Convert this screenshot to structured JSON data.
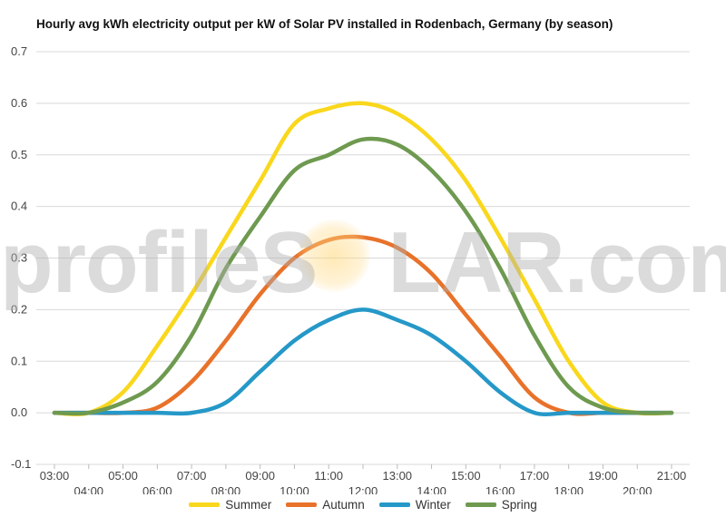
{
  "chart_data": {
    "type": "line",
    "title": "Hourly avg kWh electricity output per kW of Solar PV installed in Rodenbach, Germany (by season)",
    "xlabel": "",
    "ylabel": "",
    "x": [
      "03:00",
      "04:00",
      "05:00",
      "06:00",
      "07:00",
      "08:00",
      "09:00",
      "10:00",
      "11:00",
      "12:00",
      "13:00",
      "14:00",
      "15:00",
      "16:00",
      "17:00",
      "18:00",
      "19:00",
      "20:00",
      "21:00"
    ],
    "ylim": [
      -0.1,
      0.7
    ],
    "y_ticks": [
      "-0.1",
      "0.0",
      "0.1",
      "0.2",
      "0.3",
      "0.4",
      "0.5",
      "0.6",
      "0.7"
    ],
    "grid": true,
    "legend_position": "bottom",
    "series": [
      {
        "name": "Summer",
        "color": "#f9d71c",
        "values": [
          0.0,
          0.0,
          0.04,
          0.13,
          0.23,
          0.34,
          0.45,
          0.56,
          0.59,
          0.6,
          0.58,
          0.53,
          0.45,
          0.34,
          0.22,
          0.1,
          0.02,
          0.0,
          0.0
        ]
      },
      {
        "name": "Autumn",
        "color": "#e8722a",
        "values": [
          0.0,
          0.0,
          0.0,
          0.01,
          0.06,
          0.14,
          0.23,
          0.3,
          0.335,
          0.34,
          0.32,
          0.27,
          0.19,
          0.11,
          0.03,
          0.0,
          0.0,
          0.0,
          0.0
        ]
      },
      {
        "name": "Winter",
        "color": "#2598c8",
        "values": [
          0.0,
          0.0,
          0.0,
          0.0,
          0.0,
          0.02,
          0.08,
          0.14,
          0.18,
          0.2,
          0.18,
          0.15,
          0.1,
          0.04,
          0.0,
          0.0,
          0.0,
          0.0,
          0.0
        ]
      },
      {
        "name": "Spring",
        "color": "#6e9a50",
        "values": [
          0.0,
          0.0,
          0.02,
          0.06,
          0.15,
          0.28,
          0.38,
          0.47,
          0.5,
          0.53,
          0.52,
          0.47,
          0.39,
          0.28,
          0.15,
          0.05,
          0.01,
          0.0,
          0.0
        ]
      }
    ]
  },
  "watermark": {
    "text_left": "profileS",
    "text_right": "LAR.com"
  }
}
